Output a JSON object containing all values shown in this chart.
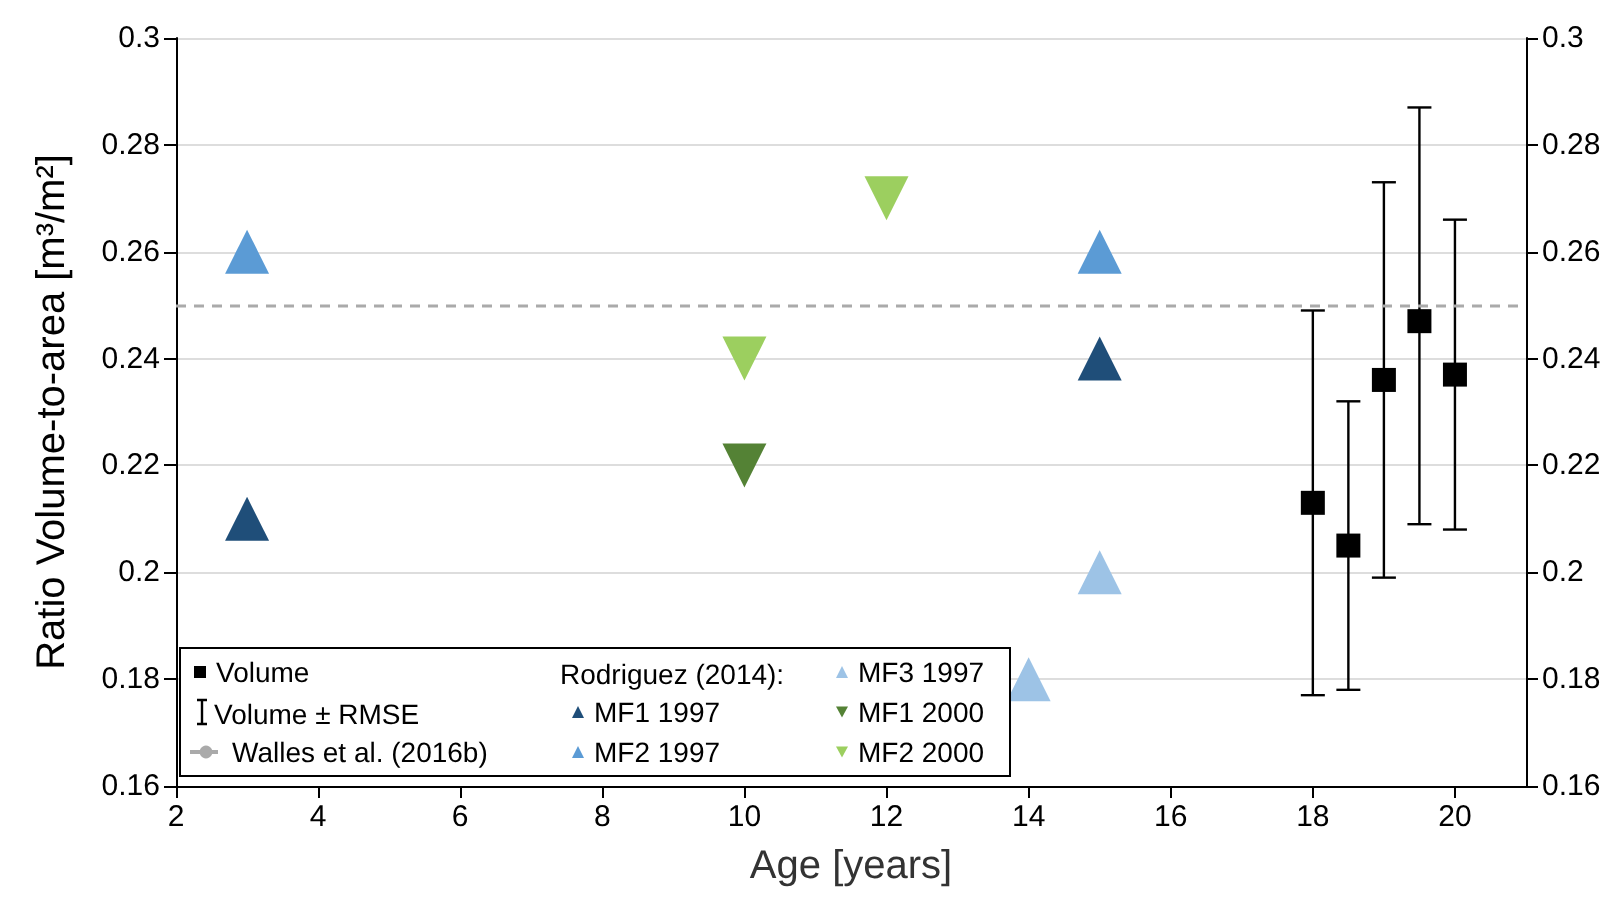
{
  "chart_data": {
    "type": "scatter",
    "xlabel": "Age [years]",
    "ylabel": "Ratio Volume-to-area [m³/m²]",
    "legend_title": "Rodriguez (2014):",
    "annotations": [
      "Volume ± RMSE"
    ],
    "xlim": [
      2,
      21
    ],
    "xticks": [
      2,
      4,
      6,
      8,
      10,
      12,
      14,
      16,
      18,
      20
    ],
    "ylim": [
      0.16,
      0.3
    ],
    "yticks": [
      0.16,
      0.18,
      0.2,
      0.22,
      0.24,
      0.26,
      0.28,
      0.3
    ],
    "y2lim": [
      0.16,
      0.3
    ],
    "y2ticks": [
      0.16,
      0.18,
      0.2,
      0.22,
      0.24,
      0.26,
      0.28,
      0.3
    ],
    "grid": "y",
    "legend": "bottom left",
    "ref_lines": [
      {
        "axis": "y",
        "value": 0.25,
        "label": "Walles et al. (2016b)",
        "color": "#aaaaaa",
        "line_style": "dashed"
      }
    ],
    "series": [
      {
        "name": "Volume",
        "color": "#000000",
        "marker": "square",
        "x": [
          18,
          18.5,
          19,
          19.5,
          20
        ],
        "values": [
          0.213,
          0.205,
          0.236,
          0.247,
          0.237
        ],
        "errors": [
          [
            0.177,
            0.249
          ],
          [
            0.178,
            0.232
          ],
          [
            0.199,
            0.273
          ],
          [
            0.209,
            0.287
          ],
          [
            0.208,
            0.266
          ]
        ]
      },
      {
        "name": "MF1 1997",
        "color": "#1f4e79",
        "marker": "triangle",
        "x": [
          3,
          15
        ],
        "values": [
          0.21,
          0.24
        ]
      },
      {
        "name": "MF2 1997",
        "color": "#5b9bd5",
        "marker": "triangle",
        "x": [
          3,
          15
        ],
        "values": [
          0.26,
          0.26
        ]
      },
      {
        "name": "MF3 1997",
        "color": "#9dc3e6",
        "marker": "triangle",
        "x": [
          14,
          15
        ],
        "values": [
          0.18,
          0.2
        ]
      },
      {
        "name": "MF1 2000",
        "color": "#548235",
        "marker": "triangle-down",
        "x": [
          10
        ],
        "values": [
          0.22
        ]
      },
      {
        "name": "MF2 2000",
        "color": "#9ccf5f",
        "marker": "triangle-down",
        "x": [
          10,
          12
        ],
        "values": [
          0.24,
          0.27
        ]
      }
    ]
  }
}
